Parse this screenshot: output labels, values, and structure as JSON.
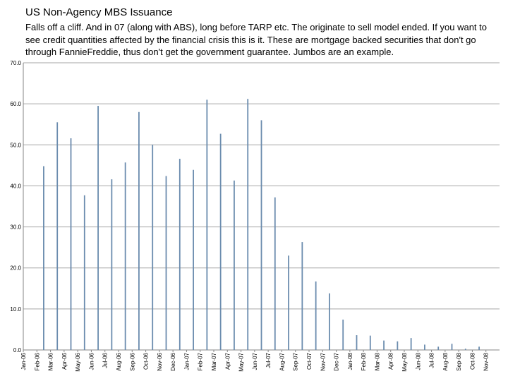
{
  "chart_data": {
    "type": "bar",
    "title": "US Non-Agency MBS Issuance",
    "subtitle": "Falls off a cliff. And in 07 (along with ABS), long before TARP etc. The originate to sell model ended. If you want to see credit quantities affected by the financial crisis this is it. These are mortgage backed securities that don't go through FannieFreddie, thus don't get the government guarantee. Jumbos are an example.",
    "xlabel": "",
    "ylabel": "",
    "ylim": [
      0,
      70
    ],
    "yticks": [
      "0.0",
      "10.0",
      "20.0",
      "30.0",
      "40.0",
      "50.0",
      "60.0",
      "70.0"
    ],
    "grid": true,
    "categories": [
      "Jan-06",
      "Feb-06",
      "Mar-06",
      "Apr-06",
      "May-06",
      "Jun-06",
      "Jul-06",
      "Aug-06",
      "Sep-06",
      "Oct-06",
      "Nov-06",
      "Dec-06",
      "Jan-07",
      "Feb-07",
      "Mar-07",
      "Apr-07",
      "May-07",
      "Jun-07",
      "Jul-07",
      "Aug-07",
      "Sep-07",
      "Oct-07",
      "Nov-07",
      "Dec-07",
      "Jan-08",
      "Feb-08",
      "Mar-08",
      "Apr-08",
      "May-08",
      "Jun-08",
      "Jul-08",
      "Aug-08",
      "Sep-08",
      "Oct-08",
      "Nov-08"
    ],
    "values": [
      0,
      44.8,
      55.5,
      51.6,
      37.7,
      59.5,
      41.6,
      45.7,
      58.0,
      50.0,
      42.4,
      46.6,
      43.9,
      61.0,
      52.7,
      41.3,
      61.2,
      56.0,
      37.2,
      23.0,
      26.3,
      16.7,
      13.8,
      7.4,
      3.6,
      3.5,
      2.3,
      2.1,
      2.9,
      1.3,
      0.8,
      1.5,
      0.3,
      0.8,
      0
    ],
    "colors": {
      "bar": "#6b8cae",
      "grid": "#a6a6a6",
      "axis": "#868686"
    }
  }
}
